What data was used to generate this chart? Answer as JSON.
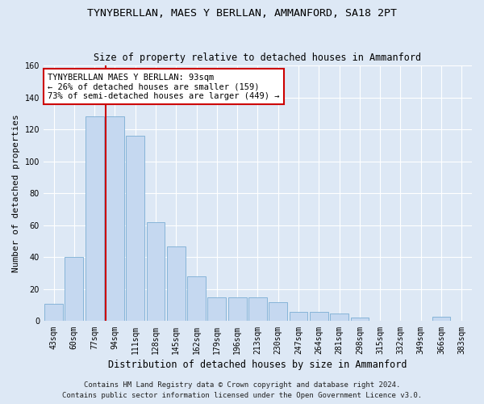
{
  "title": "TYNYBERLLAN, MAES Y BERLLAN, AMMANFORD, SA18 2PT",
  "subtitle": "Size of property relative to detached houses in Ammanford",
  "xlabel": "Distribution of detached houses by size in Ammanford",
  "ylabel": "Number of detached properties",
  "categories": [
    "43sqm",
    "60sqm",
    "77sqm",
    "94sqm",
    "111sqm",
    "128sqm",
    "145sqm",
    "162sqm",
    "179sqm",
    "196sqm",
    "213sqm",
    "230sqm",
    "247sqm",
    "264sqm",
    "281sqm",
    "298sqm",
    "315sqm",
    "332sqm",
    "349sqm",
    "366sqm",
    "383sqm"
  ],
  "values": [
    11,
    40,
    128,
    128,
    116,
    62,
    47,
    28,
    15,
    15,
    15,
    12,
    6,
    6,
    5,
    2,
    0,
    0,
    0,
    3,
    0
  ],
  "bar_color": "#c5d8f0",
  "bar_edge_color": "#7aadd4",
  "vline_color": "#cc0000",
  "annotation_text": "TYNYBERLLAN MAES Y BERLLAN: 93sqm\n← 26% of detached houses are smaller (159)\n73% of semi-detached houses are larger (449) →",
  "annotation_box_facecolor": "#ffffff",
  "annotation_box_edgecolor": "#cc0000",
  "ylim": [
    0,
    160
  ],
  "yticks": [
    0,
    20,
    40,
    60,
    80,
    100,
    120,
    140,
    160
  ],
  "bg_color": "#dde8f5",
  "plot_bg_color": "#dde8f5",
  "grid_color": "#ffffff",
  "footer_line1": "Contains HM Land Registry data © Crown copyright and database right 2024.",
  "footer_line2": "Contains public sector information licensed under the Open Government Licence v3.0.",
  "title_fontsize": 9.5,
  "subtitle_fontsize": 8.5,
  "xlabel_fontsize": 8.5,
  "ylabel_fontsize": 8,
  "tick_fontsize": 7,
  "annotation_fontsize": 7.5,
  "footer_fontsize": 6.5,
  "vline_pos": 2.55
}
